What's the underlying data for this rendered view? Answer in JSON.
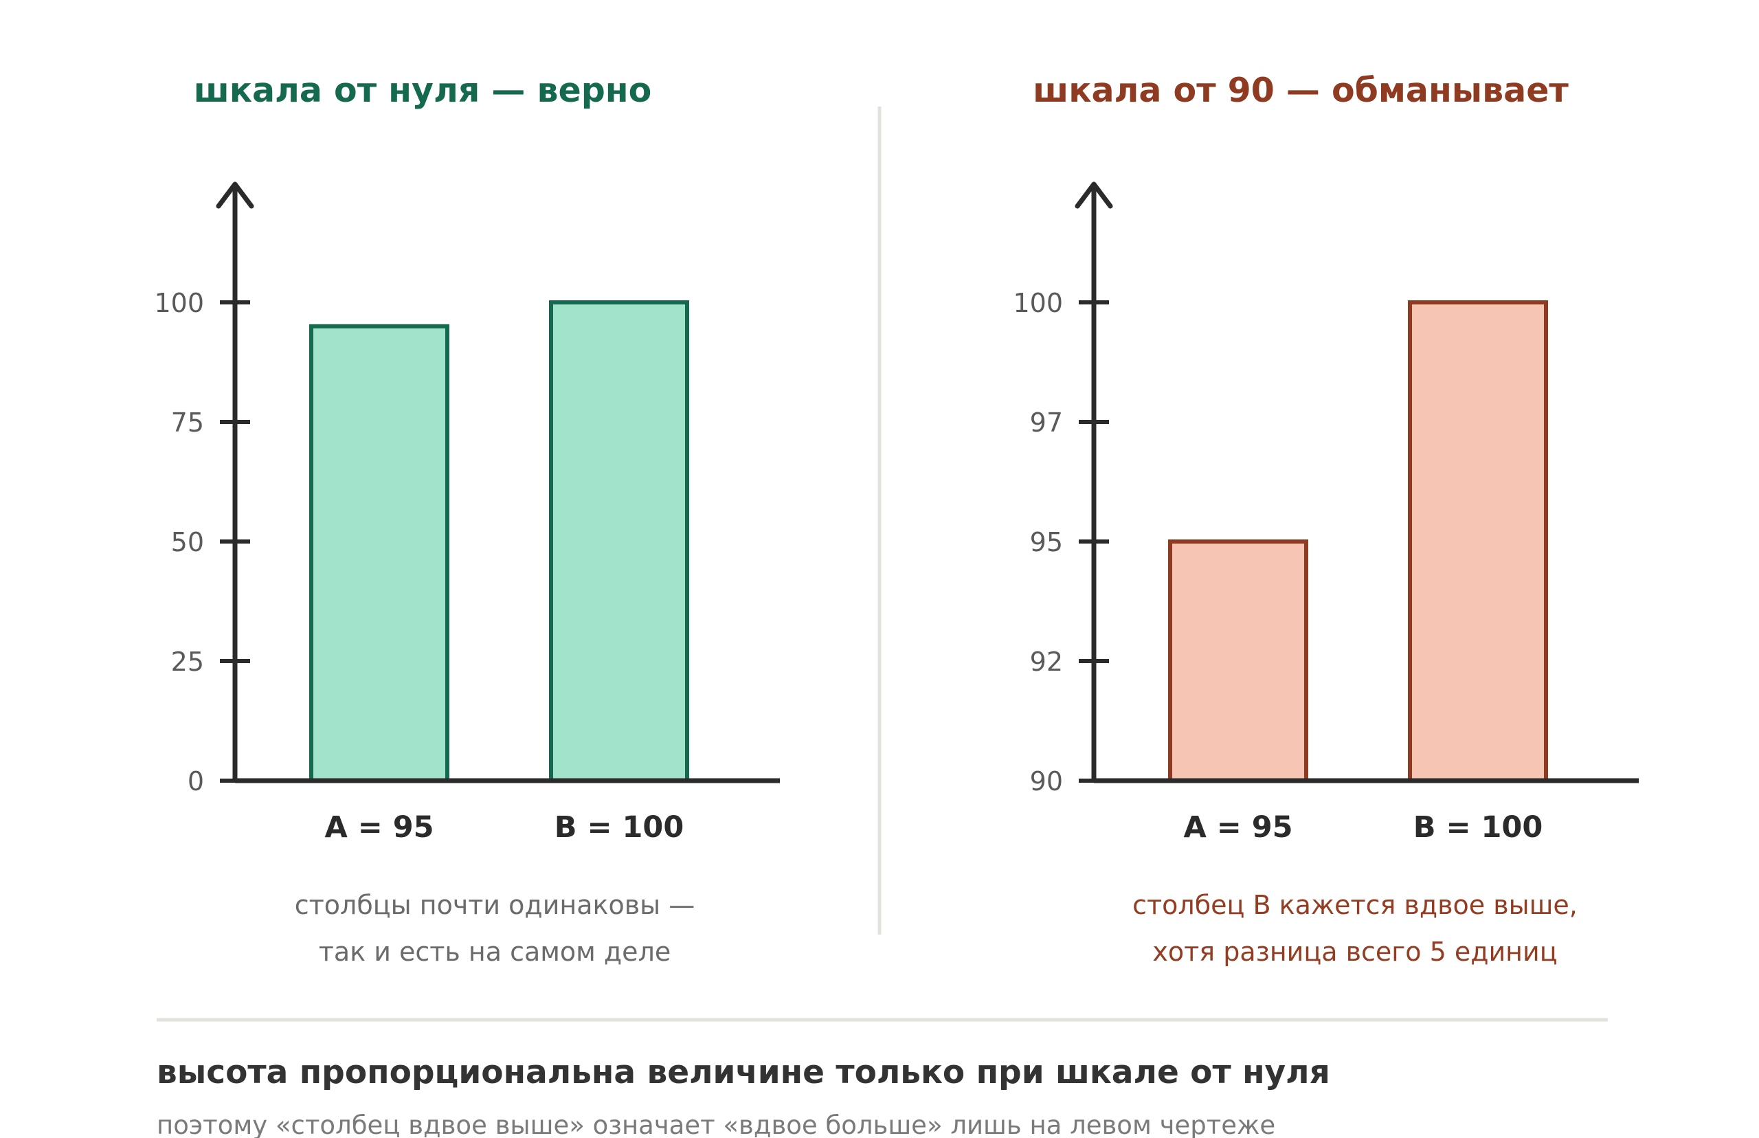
{
  "colors": {
    "left_accent": "#14694e",
    "left_fill": "#a1e3cb",
    "right_accent": "#8e3b21",
    "right_fill": "#f6c5b3",
    "axis": "#2b2b2b",
    "divider": "#e3e1dc",
    "note_left": "#6b6b6b",
    "note_right": "#933d22"
  },
  "chart_data": [
    {
      "type": "bar",
      "title": "шкала от нуля — верно",
      "categories": [
        "A = 95",
        "B = 100"
      ],
      "values": [
        95,
        100
      ],
      "ylim": [
        0,
        120
      ],
      "yticks": [
        0,
        25,
        50,
        75,
        100
      ],
      "ytick_labels": [
        "0",
        "25",
        "50",
        "75",
        "100"
      ],
      "xlabel": "",
      "ylabel": "",
      "grid": false,
      "note": [
        "столбцы почти одинаковы —",
        "так и есть на самом деле"
      ]
    },
    {
      "type": "bar",
      "title": "шкала от 90 — обманывает",
      "categories": [
        "A = 95",
        "B = 100"
      ],
      "values": [
        95,
        100
      ],
      "ylim": [
        90,
        102
      ],
      "yticks": [
        90,
        92,
        95,
        97,
        100
      ],
      "ytick_labels": [
        "90",
        "92",
        "95",
        "97",
        "100"
      ],
      "xlabel": "",
      "ylabel": "",
      "grid": false,
      "note": [
        "столбец B кажется вдвое выше,",
        "хотя разница всего 5 единиц"
      ]
    }
  ],
  "footer": {
    "title": "высота пропорциональна величине только при шкале от нуля",
    "subtitle": "поэтому «столбец вдвое выше» означает «вдвое больше» лишь на левом чертеже"
  }
}
